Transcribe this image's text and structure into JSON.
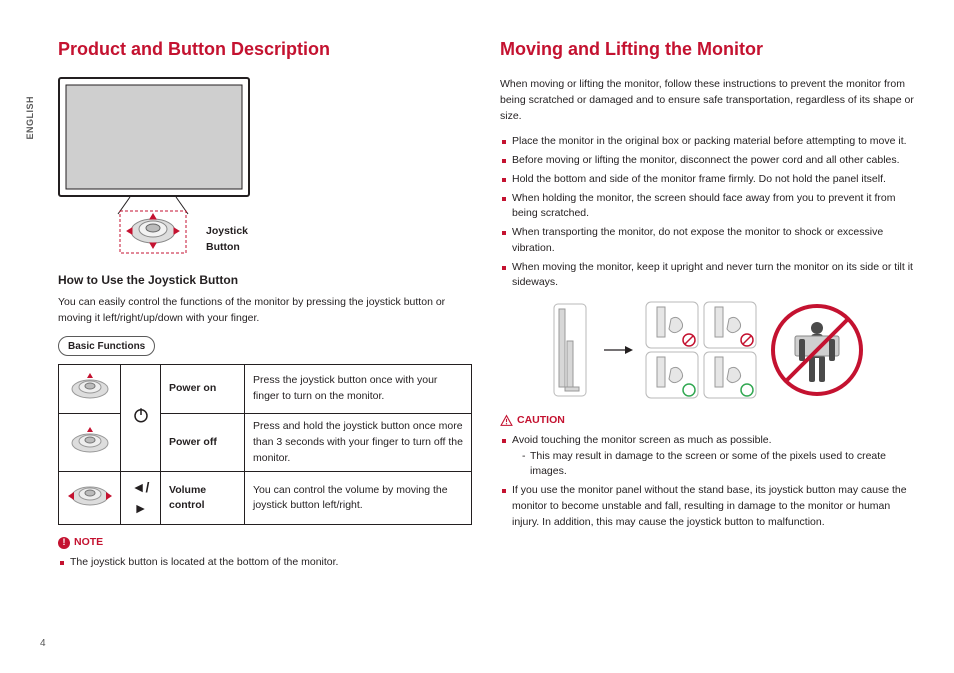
{
  "language_tab": "ENGLISH",
  "page_number": "4",
  "accent_color": "#c41230",
  "text_color": "#231f20",
  "left": {
    "title": "Product and Button Description",
    "joystick_label": "Joystick Button",
    "howto_heading": "How to Use the Joystick Button",
    "howto_text": "You can easily control the functions of the monitor by pressing the joystick button or moving it left/right/up/down with your finger.",
    "basic_functions_label": "Basic Functions",
    "table": {
      "rows": [
        {
          "symbol": "power",
          "label": "Power on",
          "desc": "Press the joystick button once with your finger to turn on the monitor."
        },
        {
          "symbol": "power",
          "label": "Power off",
          "desc": "Press and hold the joystick button once more than 3 seconds with your finger to turn off the monitor."
        },
        {
          "symbol": "leftright",
          "label": "Volume control",
          "desc": "You can control the volume by moving the joystick button left/right."
        }
      ]
    },
    "note_label": "NOTE",
    "note_items": [
      "The joystick button is located at the bottom of the monitor."
    ]
  },
  "right": {
    "title": "Moving and Lifting the Monitor",
    "intro": "When moving or lifting the monitor, follow these instructions to prevent the monitor from being scratched or damaged and to ensure safe transportation, regardless of its shape or size.",
    "bullets": [
      "Place the monitor in the original box or packing material before attempting to move it.",
      "Before moving or lifting the monitor, disconnect the power cord and all other cables.",
      "Hold the bottom and side of the monitor frame firmly. Do not hold the panel itself.",
      "When holding the monitor, the screen should face away from you to prevent it from being scratched.",
      "When transporting the monitor, do not expose the monitor to shock or excessive vibration.",
      "When moving the monitor, keep it upright and never turn the monitor on its side or tilt it sideways."
    ],
    "caution_label": "CAUTION",
    "caution_items": [
      {
        "text": "Avoid touching the monitor screen as much as possible.",
        "sub": [
          "This may result in damage to the screen or some of the pixels used to create images."
        ]
      },
      {
        "text": "If you use the monitor panel without the stand base, its joystick button may cause the monitor to become unstable and fall, resulting in damage to the monitor or human injury. In addition, this may cause the joystick button to malfunction."
      }
    ]
  }
}
